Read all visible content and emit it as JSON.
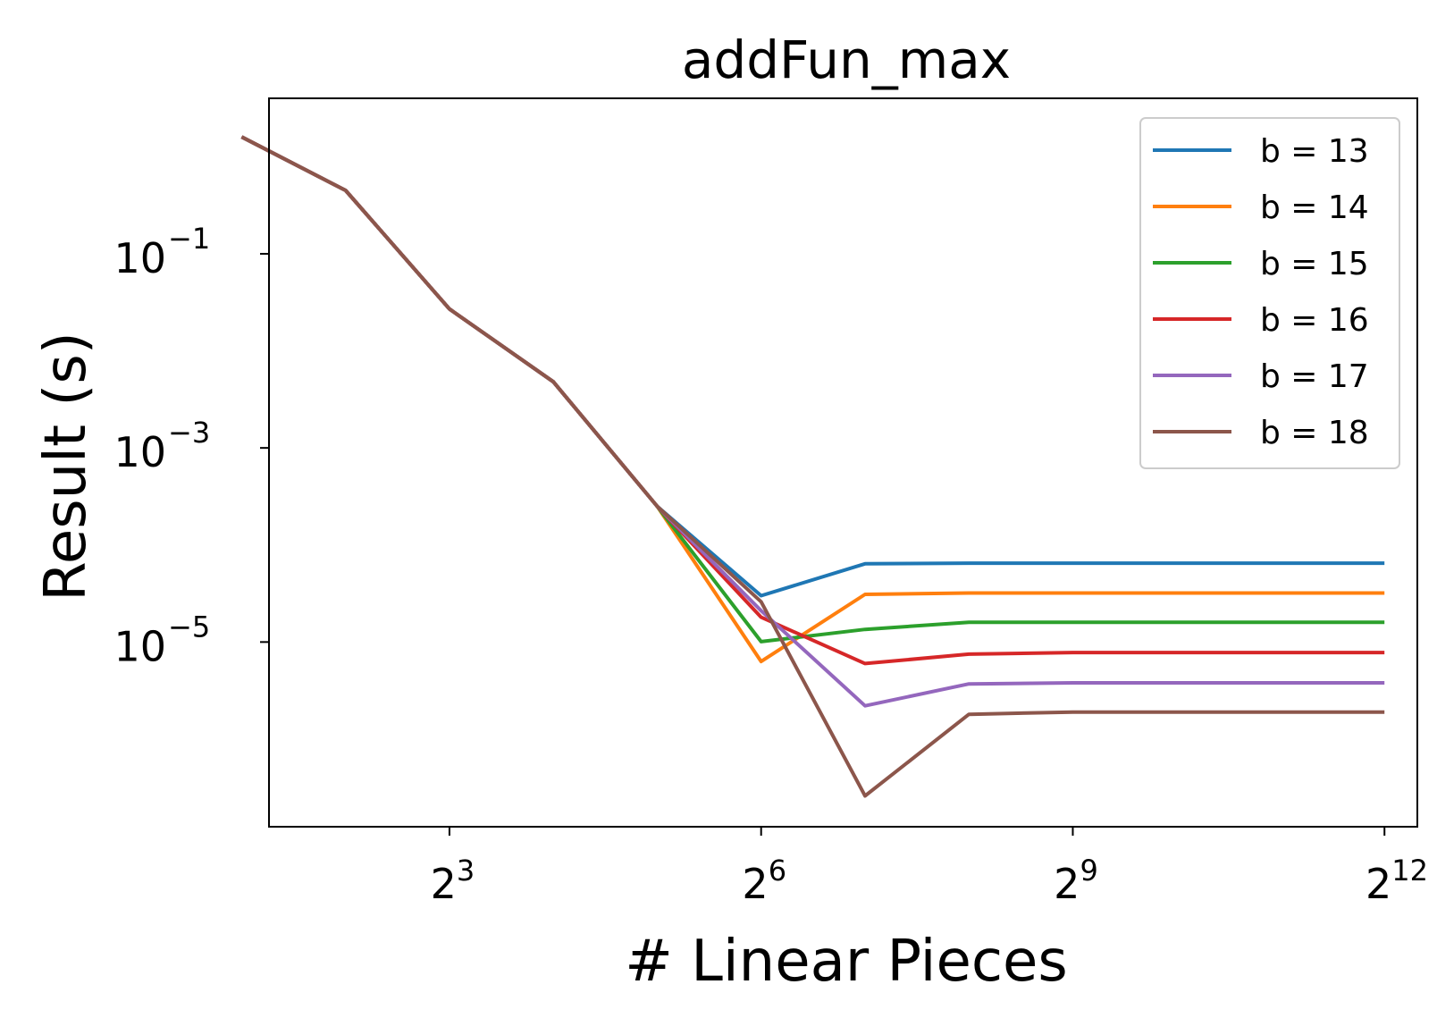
{
  "chart_data": {
    "type": "line",
    "title": "addFun_max",
    "xlabel": "# Linear Pieces",
    "ylabel": "Result (s)",
    "x_scale": "log2",
    "y_scale": "log10",
    "xlim": [
      2.4,
      5100
    ],
    "ylim": [
      1.25e-07,
      4.0
    ],
    "x_ticks": [
      {
        "base": "2",
        "exp": "3",
        "value": 8
      },
      {
        "base": "2",
        "exp": "6",
        "value": 64
      },
      {
        "base": "2",
        "exp": "9",
        "value": 512
      },
      {
        "base": "2",
        "exp": "12",
        "value": 4096
      }
    ],
    "y_ticks": [
      {
        "base": "10",
        "exp": "−1",
        "value": 0.1
      },
      {
        "base": "10",
        "exp": "−3",
        "value": 0.001
      },
      {
        "base": "10",
        "exp": "−5",
        "value": 1e-05
      }
    ],
    "legend_position": "upper right",
    "grid": false,
    "x": [
      2,
      4,
      8,
      16,
      32,
      64,
      128,
      256,
      512,
      1024,
      2048,
      4096
    ],
    "series": [
      {
        "name": "b = 13",
        "color": "#1f77b4",
        "values": [
          1.6,
          0.45,
          0.027,
          0.0048,
          0.00025,
          3e-05,
          6.4e-05,
          6.5e-05,
          6.5e-05,
          6.5e-05,
          6.5e-05,
          6.5e-05
        ]
      },
      {
        "name": "b = 14",
        "color": "#ff7f0e",
        "values": [
          1.6,
          0.45,
          0.027,
          0.0048,
          0.00025,
          6.3e-06,
          3.1e-05,
          3.2e-05,
          3.2e-05,
          3.2e-05,
          3.2e-05,
          3.2e-05
        ]
      },
      {
        "name": "b = 15",
        "color": "#2ca02c",
        "values": [
          1.6,
          0.45,
          0.027,
          0.0048,
          0.00025,
          1.01e-05,
          1.35e-05,
          1.6e-05,
          1.6e-05,
          1.6e-05,
          1.6e-05,
          1.6e-05
        ]
      },
      {
        "name": "b = 16",
        "color": "#d62728",
        "values": [
          1.6,
          0.45,
          0.027,
          0.0048,
          0.00025,
          1.8e-05,
          6e-06,
          7.5e-06,
          7.8e-06,
          7.8e-06,
          7.8e-06,
          7.8e-06
        ]
      },
      {
        "name": "b = 17",
        "color": "#9467bd",
        "values": [
          1.6,
          0.45,
          0.027,
          0.0048,
          0.00025,
          2.1e-05,
          2.2e-06,
          3.7e-06,
          3.8e-06,
          3.8e-06,
          3.8e-06,
          3.8e-06
        ]
      },
      {
        "name": "b = 18",
        "color": "#8c564b",
        "values": [
          1.6,
          0.45,
          0.027,
          0.0048,
          0.00025,
          2.6e-05,
          2.6e-07,
          1.8e-06,
          1.9e-06,
          1.9e-06,
          1.9e-06,
          1.9e-06
        ]
      }
    ]
  }
}
